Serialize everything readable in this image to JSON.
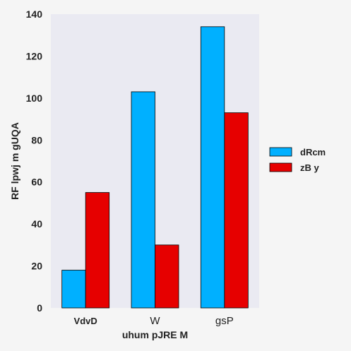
{
  "chart_data": {
    "type": "bar",
    "title": "",
    "xlabel": "uhum pJRE M",
    "ylabel": "RF lpwj m gUQA",
    "categories": [
      "VdvD",
      "W",
      "gsP"
    ],
    "category_bold": [
      true,
      false,
      false
    ],
    "series": [
      {
        "name": "dRcm",
        "color": "#00b0ff",
        "values": [
          18,
          103,
          134
        ]
      },
      {
        "name": "zB y",
        "color": "#e60000",
        "values": [
          55,
          30,
          93
        ]
      }
    ],
    "ylim": [
      0,
      140
    ],
    "yticks": [
      0,
      20,
      40,
      60,
      80,
      100,
      120,
      140
    ],
    "grid": false,
    "legend_position": "right",
    "plot_background": "#eaeaf2"
  }
}
